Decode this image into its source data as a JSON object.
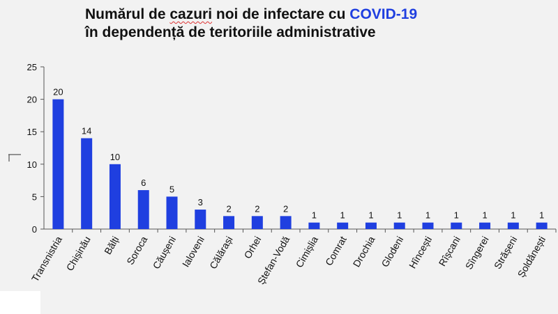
{
  "title": {
    "line1_part1": "Numărul de ",
    "line1_squiggly": "cazuri",
    "line1_part2": " noi de infectare cu ",
    "line1_highlight": "COVID-19",
    "line2": "în dependență de teritoriile administrative"
  },
  "colors": {
    "bar": "#1f3fe0",
    "title_highlight": "#1f3fe0",
    "background": "#f2f2f2"
  },
  "chart_data": {
    "type": "bar",
    "title": "Numărul de cazuri noi de infectare cu COVID-19 în dependență de teritoriile administrative",
    "xlabel": "",
    "ylabel": "",
    "ylim": [
      0,
      25
    ],
    "yticks": [
      0,
      5,
      10,
      15,
      20,
      25
    ],
    "grid": false,
    "legend": "none",
    "data_labels": true,
    "categories": [
      "Transnistria",
      "Chișinău",
      "Bălți",
      "Soroca",
      "Căușeni",
      "Ialoveni",
      "Călărași",
      "Orhei",
      "Ștefan-Vodă",
      "Cimișlia",
      "Comrat",
      "Drochia",
      "Glodeni",
      "Hîncești",
      "Rîșcani",
      "Sîngerei",
      "Strășeni",
      "Șoldănești"
    ],
    "values": [
      20,
      14,
      10,
      6,
      5,
      3,
      2,
      2,
      2,
      1,
      1,
      1,
      1,
      1,
      1,
      1,
      1,
      1
    ]
  }
}
